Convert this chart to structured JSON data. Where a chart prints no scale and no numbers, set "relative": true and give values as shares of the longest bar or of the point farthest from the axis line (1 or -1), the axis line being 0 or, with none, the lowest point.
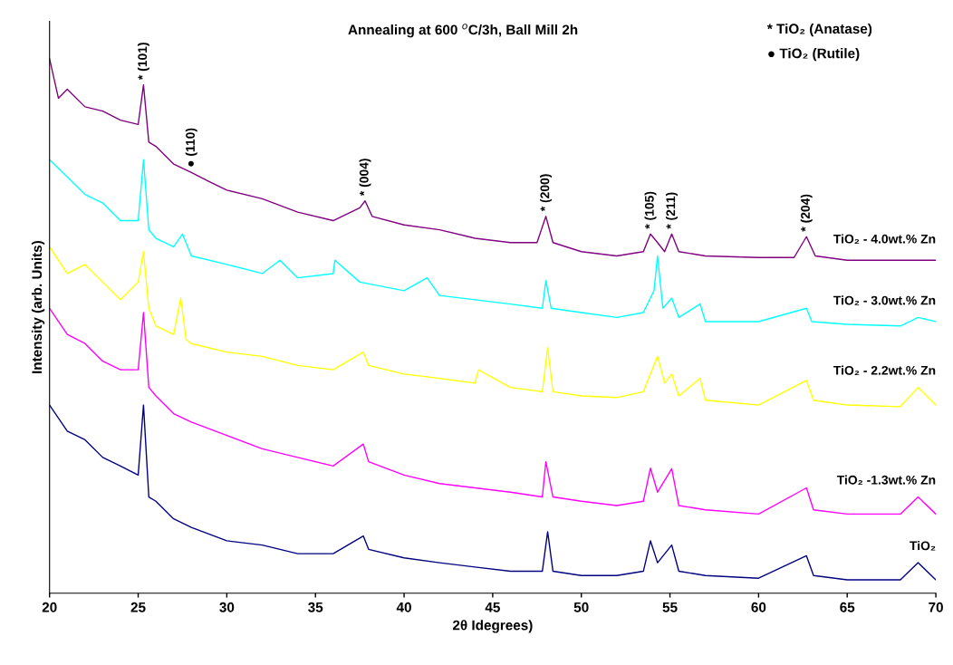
{
  "chart_data": {
    "type": "line",
    "relative": true,
    "title": "Annealing at 600 $^{o}$C/3h, Ball Mill 2h",
    "xlabel": "2θ Idegrees)",
    "ylabel": "Intensity (arb. Units)",
    "xlim": [
      20,
      70
    ],
    "xticks": [
      20,
      25,
      30,
      35,
      40,
      45,
      50,
      55,
      60,
      65,
      70
    ],
    "grid": false,
    "legend": false,
    "tick_labels": "x",
    "series": [
      {
        "name": "TiO₂ - 4.0wt.% Zn",
        "color": "#800080",
        "x": [
          20,
          20.5,
          21,
          22,
          23,
          24,
          25,
          25.3,
          25.6,
          26,
          27,
          28,
          29,
          30,
          32,
          34,
          36,
          37.5,
          37.8,
          38.2,
          40,
          42,
          44,
          46,
          47.5,
          48,
          48.4,
          50,
          52,
          53.5,
          53.9,
          54.3,
          54.7,
          55.1,
          55.5,
          57,
          60,
          62,
          62.7,
          63.2,
          65,
          68,
          70
        ],
        "values": [
          1.0,
          0.926,
          0.943,
          0.91,
          0.902,
          0.885,
          0.877,
          0.951,
          0.844,
          0.836,
          0.803,
          0.787,
          0.77,
          0.754,
          0.738,
          0.713,
          0.697,
          0.721,
          0.734,
          0.705,
          0.689,
          0.68,
          0.664,
          0.656,
          0.656,
          0.705,
          0.656,
          0.639,
          0.631,
          0.639,
          0.672,
          0.656,
          0.639,
          0.672,
          0.639,
          0.631,
          0.628,
          0.628,
          0.667,
          0.631,
          0.623,
          0.623,
          0.623
        ]
      },
      {
        "name": "TiO₂ - 3.0wt.% Zn",
        "color": "#00ffff",
        "x": [
          20,
          21,
          22,
          23,
          24,
          25,
          25.3,
          25.6,
          26,
          27,
          27.5,
          28,
          30,
          32,
          33,
          34,
          36,
          36.1,
          37.5,
          40,
          41.3,
          42,
          44,
          46,
          47.8,
          48,
          48.3,
          50,
          52,
          53.5,
          54.1,
          54.3,
          54.6,
          55.1,
          55.5,
          56.7,
          57,
          60,
          62.7,
          63,
          65,
          68,
          69,
          70
        ],
        "values": [
          0.811,
          0.779,
          0.746,
          0.73,
          0.697,
          0.697,
          0.811,
          0.68,
          0.664,
          0.648,
          0.672,
          0.631,
          0.615,
          0.598,
          0.623,
          0.59,
          0.598,
          0.623,
          0.582,
          0.566,
          0.59,
          0.557,
          0.549,
          0.541,
          0.533,
          0.585,
          0.533,
          0.525,
          0.516,
          0.525,
          0.566,
          0.631,
          0.533,
          0.552,
          0.516,
          0.541,
          0.508,
          0.508,
          0.533,
          0.508,
          0.503,
          0.5,
          0.516,
          0.508
        ]
      },
      {
        "name": "TiO₂ - 2.2wt.% Zn",
        "color": "#ffff00",
        "x": [
          20,
          21,
          22,
          23,
          24,
          25,
          25.3,
          25.6,
          26,
          27,
          27.4,
          27.7,
          28,
          30,
          32,
          34,
          36,
          37.7,
          38,
          40,
          42,
          44,
          44.2,
          46,
          47.8,
          48.1,
          48.4,
          50,
          52,
          53.5,
          54.3,
          54.7,
          55.1,
          55.5,
          56.7,
          57,
          60,
          62.7,
          63.1,
          65,
          68,
          69,
          70
        ],
        "values": [
          0.648,
          0.598,
          0.615,
          0.582,
          0.549,
          0.582,
          0.639,
          0.533,
          0.5,
          0.484,
          0.552,
          0.475,
          0.467,
          0.451,
          0.443,
          0.426,
          0.418,
          0.451,
          0.426,
          0.41,
          0.402,
          0.393,
          0.418,
          0.385,
          0.377,
          0.459,
          0.377,
          0.369,
          0.366,
          0.377,
          0.443,
          0.393,
          0.41,
          0.369,
          0.402,
          0.361,
          0.352,
          0.398,
          0.361,
          0.352,
          0.349,
          0.385,
          0.352
        ]
      },
      {
        "name": "TiO₂ -1.3wt.% Zn",
        "color": "#ff00ff",
        "x": [
          20,
          21,
          22,
          23,
          24,
          25,
          25.3,
          25.6,
          26,
          27,
          28,
          30,
          32,
          34,
          36,
          37.7,
          38,
          40,
          42,
          44,
          46,
          47.8,
          48,
          48.4,
          50,
          52,
          53.5,
          53.9,
          54.3,
          55.1,
          55.5,
          57,
          60,
          62.7,
          63.1,
          65,
          68,
          69,
          70
        ],
        "values": [
          0.533,
          0.484,
          0.467,
          0.434,
          0.418,
          0.418,
          0.525,
          0.385,
          0.369,
          0.336,
          0.32,
          0.295,
          0.27,
          0.254,
          0.238,
          0.279,
          0.246,
          0.221,
          0.205,
          0.197,
          0.189,
          0.18,
          0.246,
          0.18,
          0.172,
          0.164,
          0.172,
          0.234,
          0.189,
          0.233,
          0.164,
          0.156,
          0.148,
          0.197,
          0.156,
          0.148,
          0.148,
          0.18,
          0.148
        ]
      },
      {
        "name": "TiO₂",
        "color": "#000080",
        "x": [
          20,
          21,
          22,
          23,
          24,
          25,
          25.3,
          25.6,
          26,
          27,
          28,
          30,
          32,
          34,
          36,
          37.7,
          38,
          40,
          42,
          44,
          46,
          47.8,
          48.1,
          48.4,
          50,
          52,
          53.5,
          53.9,
          54.3,
          55.1,
          55.5,
          57,
          60,
          62.7,
          63.1,
          65,
          68,
          69,
          70
        ],
        "values": [
          0.352,
          0.303,
          0.287,
          0.254,
          0.238,
          0.221,
          0.352,
          0.18,
          0.172,
          0.139,
          0.123,
          0.098,
          0.09,
          0.074,
          0.074,
          0.107,
          0.082,
          0.066,
          0.057,
          0.049,
          0.041,
          0.041,
          0.115,
          0.041,
          0.033,
          0.033,
          0.041,
          0.098,
          0.057,
          0.09,
          0.041,
          0.033,
          0.028,
          0.07,
          0.033,
          0.025,
          0.025,
          0.057,
          0.025
        ]
      }
    ],
    "annotations": [
      {
        "text": "* (101)",
        "x": 25.3,
        "y": 0.951
      },
      {
        "text": "● (110)",
        "x": 28,
        "y": 0.787
      },
      {
        "text": "* (004)",
        "x": 37.8,
        "y": 0.734
      },
      {
        "text": "* (200)",
        "x": 48,
        "y": 0.705
      },
      {
        "text": "* (105)",
        "x": 53.9,
        "y": 0.672
      },
      {
        "text": "* (211)",
        "x": 55.1,
        "y": 0.672
      },
      {
        "text": "* (204)",
        "x": 62.7,
        "y": 0.667
      },
      "* TiO₂ (Anatase)",
      "● TiO₂ (Rutile)"
    ]
  }
}
